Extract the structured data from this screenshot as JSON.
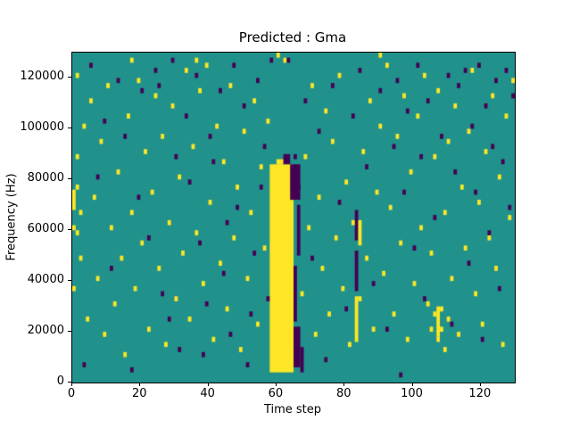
{
  "figure": {
    "title": "Predicted : Gma",
    "xlabel": "Time step",
    "ylabel": "Frequency (Hz)"
  },
  "chart_data": {
    "type": "heatmap",
    "title": "Predicted : Gma",
    "xlabel": "Time step",
    "ylabel": "Frequency (Hz)",
    "xlim": [
      0,
      130
    ],
    "ylim": [
      0,
      130000
    ],
    "x_ticks": [
      0,
      20,
      40,
      60,
      80,
      100,
      120
    ],
    "y_ticks": [
      0,
      20000,
      40000,
      60000,
      80000,
      100000,
      120000
    ],
    "grid": {
      "cols": 130,
      "rows": 65,
      "row_height_hz": 2000
    },
    "colors": {
      "background": "#21918c",
      "yellow": "#fde725",
      "dark": "#440154"
    },
    "legend": "none",
    "segments": [
      {
        "color": "yellow",
        "x0": 58,
        "x1": 64,
        "y0": 2,
        "y1": 42
      },
      {
        "color": "yellow",
        "x0": 60,
        "x1": 62,
        "y0": 43,
        "y1": 43
      },
      {
        "color": "dark",
        "x0": 65,
        "x1": 66,
        "y0": 3,
        "y1": 10
      },
      {
        "color": "dark",
        "x0": 65,
        "x1": 65,
        "y0": 12,
        "y1": 22
      },
      {
        "color": "dark",
        "x0": 66,
        "x1": 66,
        "y0": 25,
        "y1": 34
      },
      {
        "color": "dark",
        "x0": 64,
        "x1": 66,
        "y0": 36,
        "y1": 42
      },
      {
        "color": "dark",
        "x0": 62,
        "x1": 63,
        "y0": 43,
        "y1": 44
      },
      {
        "color": "dark",
        "x0": 67,
        "x1": 67,
        "y0": 2,
        "y1": 6
      },
      {
        "color": "dark",
        "x0": 83,
        "x1": 83,
        "y0": 18,
        "y1": 25
      },
      {
        "color": "dark",
        "x0": 83,
        "x1": 83,
        "y0": 28,
        "y1": 33
      },
      {
        "color": "yellow",
        "x0": 83,
        "x1": 83,
        "y0": 8,
        "y1": 16
      },
      {
        "color": "yellow",
        "x0": 84,
        "x1": 84,
        "y0": 27,
        "y1": 31
      },
      {
        "color": "yellow",
        "x0": 107,
        "x1": 107,
        "y0": 9,
        "y1": 14
      },
      {
        "color": "yellow",
        "x0": 0,
        "x1": 0,
        "y0": 34,
        "y1": 37
      }
    ],
    "cells": {
      "yellow": [
        [
          1,
          60
        ],
        [
          1,
          44
        ],
        [
          1,
          38
        ],
        [
          2,
          33
        ],
        [
          0,
          30
        ],
        [
          1,
          29
        ],
        [
          2,
          24
        ],
        [
          0,
          18
        ],
        [
          3,
          50
        ],
        [
          4,
          12
        ],
        [
          5,
          55
        ],
        [
          6,
          36
        ],
        [
          7,
          20
        ],
        [
          8,
          47
        ],
        [
          9,
          9
        ],
        [
          10,
          58
        ],
        [
          11,
          30
        ],
        [
          12,
          15
        ],
        [
          13,
          41
        ],
        [
          14,
          24
        ],
        [
          15,
          5
        ],
        [
          16,
          52
        ],
        [
          17,
          33
        ],
        [
          18,
          18
        ],
        [
          19,
          59
        ],
        [
          20,
          27
        ],
        [
          21,
          45
        ],
        [
          22,
          10
        ],
        [
          23,
          37
        ],
        [
          24,
          56
        ],
        [
          25,
          22
        ],
        [
          26,
          48
        ],
        [
          27,
          7
        ],
        [
          28,
          31
        ],
        [
          29,
          54
        ],
        [
          30,
          16
        ],
        [
          31,
          40
        ],
        [
          32,
          25
        ],
        [
          33,
          61
        ],
        [
          34,
          12
        ],
        [
          35,
          46
        ],
        [
          36,
          29
        ],
        [
          37,
          57
        ],
        [
          38,
          19
        ],
        [
          39,
          62
        ],
        [
          40,
          35
        ],
        [
          41,
          8
        ],
        [
          42,
          50
        ],
        [
          43,
          23
        ],
        [
          44,
          43
        ],
        [
          45,
          14
        ],
        [
          46,
          58
        ],
        [
          47,
          28
        ],
        [
          48,
          38
        ],
        [
          49,
          6
        ],
        [
          50,
          49
        ],
        [
          51,
          20
        ],
        [
          52,
          33
        ],
        [
          53,
          55
        ],
        [
          54,
          11
        ],
        [
          55,
          42
        ],
        [
          56,
          26
        ],
        [
          57,
          51
        ],
        [
          67,
          17
        ],
        [
          68,
          44
        ],
        [
          69,
          30
        ],
        [
          70,
          58
        ],
        [
          71,
          9
        ],
        [
          72,
          36
        ],
        [
          73,
          22
        ],
        [
          74,
          53
        ],
        [
          75,
          13
        ],
        [
          76,
          47
        ],
        [
          77,
          28
        ],
        [
          78,
          60
        ],
        [
          79,
          18
        ],
        [
          80,
          39
        ],
        [
          81,
          7
        ],
        [
          82,
          31
        ],
        [
          84,
          16
        ],
        [
          85,
          45
        ],
        [
          86,
          24
        ],
        [
          87,
          55
        ],
        [
          88,
          10
        ],
        [
          89,
          37
        ],
        [
          90,
          50
        ],
        [
          91,
          21
        ],
        [
          92,
          62
        ],
        [
          93,
          34
        ],
        [
          94,
          13
        ],
        [
          95,
          48
        ],
        [
          96,
          27
        ],
        [
          97,
          56
        ],
        [
          98,
          8
        ],
        [
          99,
          41
        ],
        [
          100,
          19
        ],
        [
          101,
          52
        ],
        [
          102,
          30
        ],
        [
          103,
          60
        ],
        [
          104,
          15
        ],
        [
          105,
          10
        ],
        [
          106,
          13
        ],
        [
          107,
          8
        ],
        [
          108,
          10
        ],
        [
          108,
          14
        ],
        [
          109,
          6
        ],
        [
          110,
          12
        ],
        [
          105,
          25
        ],
        [
          106,
          44
        ],
        [
          107,
          57
        ],
        [
          109,
          33
        ],
        [
          110,
          47
        ],
        [
          111,
          20
        ],
        [
          112,
          54
        ],
        [
          113,
          9
        ],
        [
          114,
          38
        ],
        [
          115,
          26
        ],
        [
          116,
          49
        ],
        [
          117,
          61
        ],
        [
          118,
          17
        ],
        [
          119,
          35
        ],
        [
          120,
          11
        ],
        [
          121,
          45
        ],
        [
          122,
          28
        ],
        [
          123,
          56
        ],
        [
          124,
          22
        ],
        [
          125,
          40
        ],
        [
          126,
          7
        ],
        [
          127,
          52
        ],
        [
          128,
          32
        ],
        [
          129,
          59
        ],
        [
          60,
          64
        ],
        [
          62,
          63
        ],
        [
          36,
          63
        ],
        [
          90,
          64
        ],
        [
          17,
          63
        ]
      ],
      "dark": [
        [
          5,
          62
        ],
        [
          9,
          51
        ],
        [
          13,
          59
        ],
        [
          17,
          2
        ],
        [
          20,
          57
        ],
        [
          24,
          61
        ],
        [
          25,
          58
        ],
        [
          28,
          12
        ],
        [
          30,
          44
        ],
        [
          33,
          52
        ],
        [
          36,
          60
        ],
        [
          38,
          5
        ],
        [
          40,
          48
        ],
        [
          43,
          57
        ],
        [
          45,
          31
        ],
        [
          47,
          62
        ],
        [
          50,
          54
        ],
        [
          52,
          13
        ],
        [
          54,
          59
        ],
        [
          56,
          46
        ],
        [
          58,
          63
        ],
        [
          63,
          63
        ],
        [
          65,
          44
        ],
        [
          66,
          38
        ],
        [
          68,
          55
        ],
        [
          70,
          24
        ],
        [
          72,
          49
        ],
        [
          74,
          4
        ],
        [
          76,
          58
        ],
        [
          78,
          35
        ],
        [
          80,
          14
        ],
        [
          82,
          52
        ],
        [
          84,
          61
        ],
        [
          86,
          42
        ],
        [
          88,
          19
        ],
        [
          90,
          57
        ],
        [
          92,
          10
        ],
        [
          94,
          46
        ],
        [
          95,
          59
        ],
        [
          96,
          1
        ],
        [
          97,
          37
        ],
        [
          98,
          53
        ],
        [
          100,
          26
        ],
        [
          101,
          62
        ],
        [
          102,
          44
        ],
        [
          103,
          16
        ],
        [
          104,
          55
        ],
        [
          106,
          32
        ],
        [
          108,
          48
        ],
        [
          110,
          60
        ],
        [
          111,
          11
        ],
        [
          112,
          41
        ],
        [
          113,
          58
        ],
        [
          115,
          61
        ],
        [
          116,
          23
        ],
        [
          117,
          50
        ],
        [
          118,
          37
        ],
        [
          119,
          62
        ],
        [
          120,
          8
        ],
        [
          121,
          54
        ],
        [
          122,
          29
        ],
        [
          123,
          46
        ],
        [
          124,
          59
        ],
        [
          125,
          18
        ],
        [
          126,
          43
        ],
        [
          127,
          61
        ],
        [
          128,
          34
        ],
        [
          129,
          56
        ],
        [
          3,
          3
        ],
        [
          7,
          40
        ],
        [
          11,
          22
        ],
        [
          15,
          48
        ],
        [
          19,
          36
        ],
        [
          22,
          28
        ],
        [
          26,
          17
        ],
        [
          29,
          63
        ],
        [
          31,
          6
        ],
        [
          34,
          39
        ],
        [
          37,
          27
        ],
        [
          39,
          15
        ],
        [
          41,
          43
        ],
        [
          44,
          21
        ],
        [
          46,
          9
        ],
        [
          48,
          34
        ],
        [
          51,
          3
        ],
        [
          53,
          25
        ],
        [
          55,
          38
        ],
        [
          57,
          16
        ]
      ]
    }
  }
}
